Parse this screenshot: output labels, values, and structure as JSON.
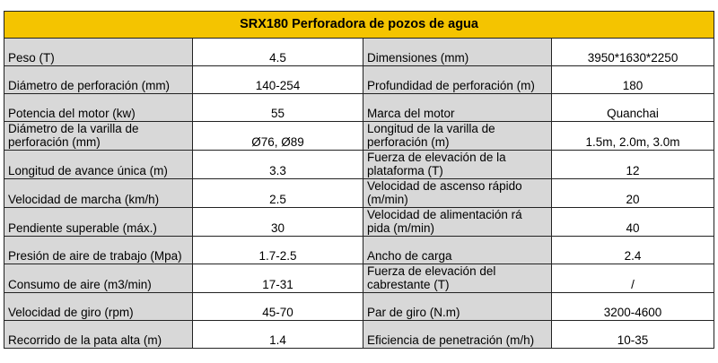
{
  "title": "SRX180 Perforadora de pozos de agua",
  "colors": {
    "header_bg": "#f4c400",
    "label_bg": "#d8d8d8",
    "value_bg": "#ffffff"
  },
  "rows": [
    {
      "label_left": "Peso (T)",
      "value_left": "4.5",
      "label_right": "Dimensiones (mm)",
      "value_right": "3950*1630*2250"
    },
    {
      "label_left": "Diámetro de perforación (mm)",
      "value_left": "140-254",
      "label_right": "Profundidad de perforación (m)",
      "value_right": "180"
    },
    {
      "label_left": "Potencia del motor (kw)",
      "value_left": "55",
      "label_right": "Marca del motor",
      "value_right": "Quanchai"
    },
    {
      "label_left": "Diámetro de la varilla de perforación (mm)",
      "value_left": "Ø76, Ø89",
      "label_right": "Longitud de la varilla de perforación (m)",
      "value_right": "1.5m, 2.0m, 3.0m"
    },
    {
      "label_left": "Longitud de avance única (m)",
      "value_left": "3.3",
      "label_right": "Fuerza de elevación de la plataforma (T)",
      "value_right": "12"
    },
    {
      "label_left": "Velocidad de marcha (km/h)",
      "value_left": "2.5",
      "label_right": "Velocidad de ascenso rápido (m/min)",
      "value_right": "20"
    },
    {
      "label_left": "Pendiente superable (máx.)",
      "value_left": "30",
      "label_right": "Velocidad de alimentación rá pida (m/min)",
      "value_right": "40"
    },
    {
      "label_left": "Presión de aire de trabajo (Mpa)",
      "value_left": "1.7-2.5",
      "label_right": "Ancho de carga",
      "value_right": "2.4"
    },
    {
      "label_left": "Consumo de aire (m3/min)",
      "value_left": "17-31",
      "label_right": "Fuerza de elevación del cabrestante (T)",
      "value_right": "/"
    },
    {
      "label_left": "Velocidad de giro (rpm)",
      "value_left": "45-70",
      "label_right": "Par de giro (N.m)",
      "value_right": "3200-4600"
    },
    {
      "label_left": "Recorrido de la pata alta (m)",
      "value_left": "1.4",
      "label_right": "Eficiencia de penetración (m/h)",
      "value_right": "10-35"
    }
  ]
}
